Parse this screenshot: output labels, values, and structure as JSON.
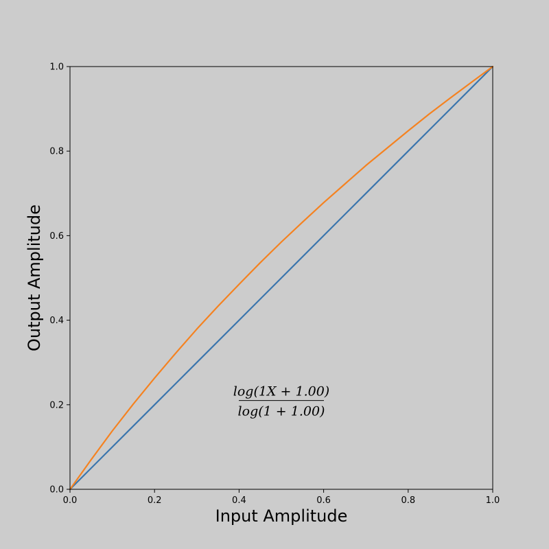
{
  "chart_data": {
    "type": "line",
    "title": "",
    "xlabel": "Input Amplitude",
    "ylabel": "Output Amplitude",
    "xlim": [
      0.0,
      1.0
    ],
    "ylim": [
      0.0,
      1.0
    ],
    "xticks": [
      "0.0",
      "0.2",
      "0.4",
      "0.6",
      "0.8",
      "1.0"
    ],
    "yticks": [
      "0.0",
      "0.2",
      "0.4",
      "0.6",
      "0.8",
      "1.0"
    ],
    "grid": false,
    "legend": "none",
    "annotation": {
      "numerator": "log(1X + 1.00)",
      "denominator": "log(1 + 1.00)",
      "x": 0.5,
      "y": 0.21
    },
    "series": [
      {
        "color": "#3a75ad",
        "x": [
          0.0,
          0.1,
          0.2,
          0.3,
          0.4,
          0.5,
          0.6,
          0.7,
          0.8,
          0.9,
          1.0
        ],
        "y": [
          0.0,
          0.1,
          0.2,
          0.3,
          0.4,
          0.5,
          0.6,
          0.7,
          0.8,
          0.9,
          1.0
        ]
      },
      {
        "color": "#f58220",
        "x": [
          0.0,
          0.05,
          0.1,
          0.15,
          0.2,
          0.25,
          0.3,
          0.35,
          0.4,
          0.45,
          0.5,
          0.55,
          0.6,
          0.65,
          0.7,
          0.75,
          0.8,
          0.85,
          0.9,
          0.95,
          1.0
        ],
        "y": [
          0.0,
          0.07,
          0.138,
          0.202,
          0.263,
          0.322,
          0.379,
          0.433,
          0.485,
          0.536,
          0.585,
          0.632,
          0.678,
          0.722,
          0.766,
          0.807,
          0.848,
          0.888,
          0.926,
          0.963,
          1.0
        ]
      }
    ]
  }
}
